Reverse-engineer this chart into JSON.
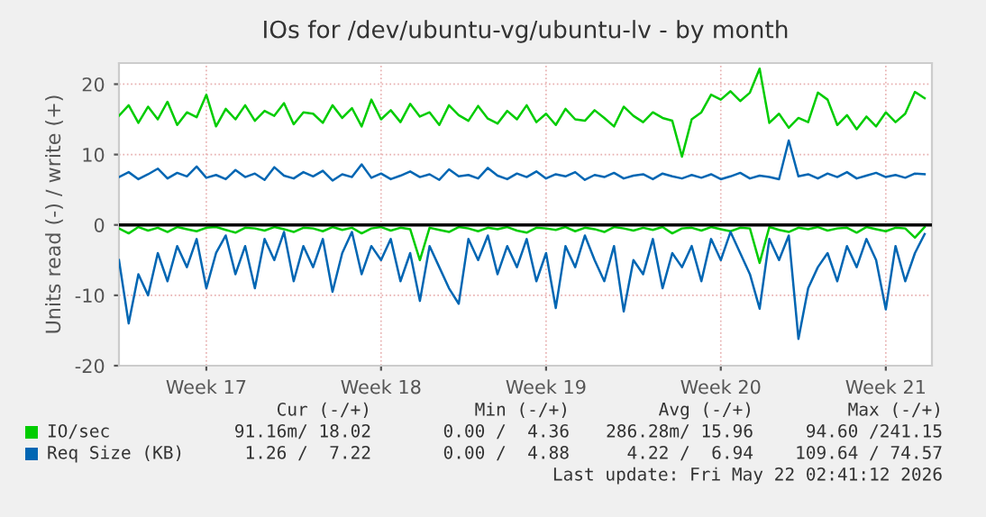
{
  "chart_data": {
    "type": "line",
    "title": "IOs for /dev/ubuntu-vg/ubuntu-lv - by month",
    "ylabel": "Units read (-) / write (+)",
    "categories": [
      null,
      null,
      null,
      null,
      null,
      null,
      null,
      null,
      null,
      "Week 17",
      null,
      null,
      null,
      null,
      null,
      null,
      null,
      null,
      null,
      null,
      null,
      null,
      null,
      null,
      null,
      null,
      null,
      "Week 18",
      null,
      null,
      null,
      null,
      null,
      null,
      null,
      null,
      null,
      null,
      null,
      null,
      null,
      null,
      null,
      null,
      "Week 19",
      null,
      null,
      null,
      null,
      null,
      null,
      null,
      null,
      null,
      null,
      null,
      null,
      null,
      null,
      null,
      null,
      null,
      "Week 20",
      null,
      null,
      null,
      null,
      null,
      null,
      null,
      null,
      null,
      null,
      null,
      null,
      null,
      null,
      null,
      null,
      "Week 21",
      null,
      null,
      null,
      null
    ],
    "series": [
      {
        "name": "IO/sec",
        "color": "#00cc00",
        "values": [
          15.5,
          17.0,
          14.5,
          16.8,
          15.0,
          17.5,
          14.2,
          16.0,
          15.3,
          18.5,
          14.0,
          16.5,
          15.0,
          17.0,
          14.8,
          16.2,
          15.5,
          17.3,
          14.3,
          16.0,
          15.8,
          14.5,
          17.0,
          15.2,
          16.6,
          14.0,
          17.8,
          15.0,
          16.3,
          14.6,
          17.2,
          15.4,
          16.0,
          14.2,
          17.0,
          15.6,
          14.8,
          16.9,
          15.1,
          14.4,
          16.2,
          15.0,
          17.0,
          14.6,
          15.8,
          14.2,
          16.5,
          15.0,
          14.8,
          16.3,
          15.2,
          14.0,
          16.8,
          15.5,
          14.6,
          16.0,
          15.2,
          14.8,
          9.7,
          15.0,
          16.0,
          18.5,
          17.8,
          19.0,
          17.6,
          18.8,
          22.2,
          14.5,
          15.8,
          13.8,
          15.2,
          14.6,
          18.8,
          17.8,
          14.2,
          15.6,
          13.6,
          15.4,
          14.0,
          16.0,
          14.6,
          15.8,
          18.9,
          18.0
        ]
      },
      {
        "color": "#00cc00",
        "values": [
          -0.5,
          -1.2,
          -0.3,
          -0.8,
          -0.4,
          -1.0,
          -0.3,
          -0.6,
          -0.9,
          -0.4,
          -0.3,
          -0.7,
          -1.1,
          -0.4,
          -0.5,
          -0.8,
          -0.3,
          -0.6,
          -1.0,
          -0.4,
          -0.5,
          -0.9,
          -0.3,
          -0.7,
          -0.4,
          -1.2,
          -0.5,
          -0.3,
          -0.8,
          -0.4,
          -0.6,
          -5.0,
          -0.4,
          -0.7,
          -1.0,
          -0.3,
          -0.5,
          -0.9,
          -0.4,
          -0.6,
          -0.3,
          -0.8,
          -1.1,
          -0.4,
          -0.5,
          -0.7,
          -0.3,
          -0.9,
          -0.4,
          -0.6,
          -1.0,
          -0.3,
          -0.5,
          -0.8,
          -0.4,
          -0.7,
          -0.3,
          -1.2,
          -0.5,
          -0.4,
          -0.8,
          -0.3,
          -0.6,
          -0.9,
          -0.4,
          -0.5,
          -5.4,
          -0.3,
          -0.7,
          -1.0,
          -0.4,
          -0.6,
          -0.3,
          -0.8,
          -0.5,
          -0.4,
          -1.1,
          -0.3,
          -0.6,
          -0.9,
          -0.4,
          -0.5,
          -1.8,
          -0.3
        ]
      },
      {
        "name": "Req Size (KB)",
        "color": "#0066b3",
        "values": [
          6.8,
          7.5,
          6.5,
          7.2,
          8.0,
          6.6,
          7.4,
          6.9,
          8.3,
          6.7,
          7.1,
          6.5,
          7.8,
          6.8,
          7.3,
          6.4,
          8.2,
          7.0,
          6.6,
          7.5,
          6.9,
          7.7,
          6.3,
          7.2,
          6.8,
          8.6,
          6.7,
          7.3,
          6.5,
          7.0,
          7.6,
          6.8,
          7.2,
          6.4,
          7.9,
          6.9,
          7.1,
          6.6,
          8.1,
          7.0,
          6.5,
          7.3,
          6.8,
          7.6,
          6.6,
          7.2,
          6.9,
          7.5,
          6.4,
          7.1,
          6.8,
          7.4,
          6.6,
          7.0,
          7.2,
          6.5,
          7.3,
          6.9,
          6.6,
          7.1,
          6.7,
          7.2,
          6.5,
          6.9,
          7.4,
          6.6,
          7.0,
          6.8,
          6.5,
          12.0,
          6.9,
          7.2,
          6.6,
          7.3,
          6.8,
          7.5,
          6.6,
          7.0,
          7.4,
          6.8,
          7.1,
          6.7,
          7.3,
          7.2
        ]
      },
      {
        "color": "#0066b3",
        "values": [
          -5,
          -14,
          -7,
          -10,
          -4,
          -8,
          -3,
          -6,
          -2,
          -9,
          -4,
          -1.5,
          -7,
          -3,
          -9,
          -2,
          -5,
          -1,
          -8,
          -3,
          -6,
          -2,
          -9.5,
          -4,
          -1,
          -7,
          -3,
          -5,
          -2,
          -8,
          -4,
          -10.8,
          -3,
          -6,
          -9,
          -11.2,
          -2,
          -5,
          -1.5,
          -7,
          -3,
          -6,
          -2,
          -8,
          -4,
          -11.8,
          -3,
          -6,
          -1.5,
          -5,
          -8,
          -3,
          -12.3,
          -5,
          -7,
          -2,
          -9,
          -4,
          -6,
          -3,
          -8,
          -2,
          -5,
          -1,
          -4,
          -7,
          -11.9,
          -2,
          -5,
          -1.5,
          -16.2,
          -9,
          -6,
          -4,
          -8,
          -3,
          -6,
          -2,
          -5,
          -12,
          -3,
          -8,
          -4,
          -1.3
        ]
      }
    ],
    "ylim": [
      -20,
      23
    ],
    "yticks": [
      -20,
      -10,
      0,
      10,
      20
    ],
    "ref_lines": [
      {
        "axis": "y",
        "value": 0,
        "color": "#000000"
      }
    ],
    "grid": true,
    "legend": "bottom",
    "line_style": "solid",
    "marker": "none",
    "annotations": [
      "Cur (-/+)",
      "Min (-/+)",
      "Avg (-/+)",
      "Max (-/+)",
      "91.16m/ 18.02",
      "0.00 /  4.36",
      "286.28m/ 15.96",
      "94.60 /241.15",
      "1.26 /  7.22",
      "0.00 /  4.88",
      "4.22 /  6.94",
      "109.64 / 74.57",
      "Last update: Fri May 22 02:41:12 2026"
    ]
  }
}
